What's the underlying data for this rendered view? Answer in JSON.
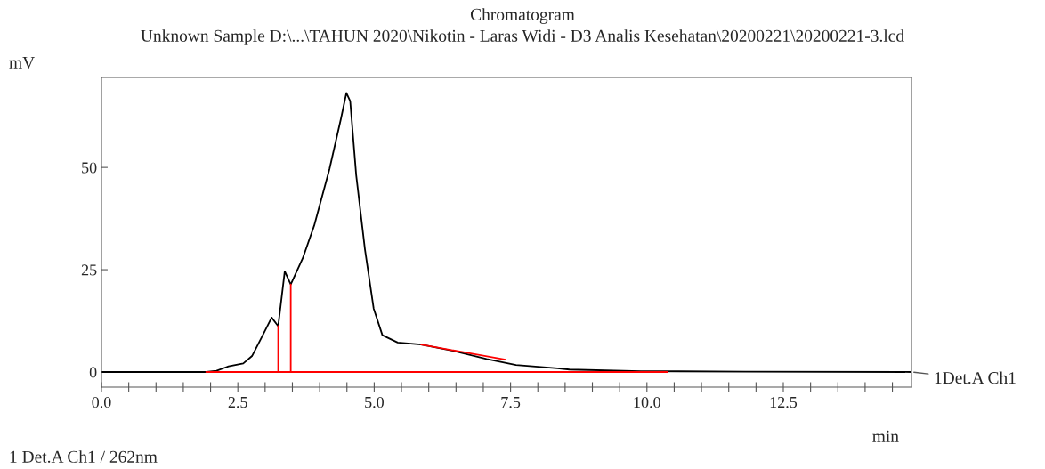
{
  "chart_data": {
    "type": "line",
    "title": "Chromatogram",
    "subtitle": "Unknown Sample D:\\...\\TAHUN 2020\\Nikotin - Laras Widi - D3 Analis Kesehatan\\20200221\\20200221-3.lcd",
    "xlabel": "min",
    "ylabel": "mV",
    "annotations": [
      {
        "text": "1Det.A Ch1",
        "x": 14.85,
        "y": 0
      },
      "1 Det.A Ch1 / 262nm"
    ],
    "series": [
      {
        "color": "#000000",
        "x": [
          0,
          1.92,
          2.11,
          2.33,
          2.6,
          2.76,
          2.93,
          3.12,
          3.24,
          3.36,
          3.47,
          3.69,
          3.9,
          4.18,
          4.39,
          4.49,
          4.56,
          4.67,
          4.83,
          4.99,
          5.15,
          5.43,
          5.86,
          6.51,
          7.06,
          7.6,
          8.36,
          8.58,
          9.89,
          11.8,
          14.85
        ],
        "values": [
          0,
          0,
          0.3,
          1.4,
          2.1,
          3.9,
          8.3,
          13.3,
          11.2,
          24.6,
          21.4,
          27.8,
          35.8,
          49.6,
          61.9,
          68.2,
          66.2,
          48.1,
          30,
          15.5,
          9.0,
          7.2,
          6.7,
          5.0,
          3.2,
          1.7,
          0.9,
          0.6,
          0.2,
          0.1,
          0
        ]
      },
      {
        "color": "#ff0000",
        "x": [
          1.92,
          10.38
        ],
        "values": [
          0,
          0
        ]
      },
      {
        "color": "#ff0000",
        "x": [
          3.24,
          3.24
        ],
        "values": [
          0,
          11.2
        ]
      },
      {
        "color": "#ff0000",
        "x": [
          3.47,
          3.47
        ],
        "values": [
          0,
          21.4
        ]
      },
      {
        "color": "#ff0000",
        "x": [
          5.86,
          7.41
        ],
        "values": [
          6.7,
          3.0
        ]
      }
    ],
    "xlim": [
      0,
      14.85
    ],
    "ylim": [
      -3.7,
      72
    ],
    "xticks": [
      {
        "value": 0,
        "label": "0.0"
      },
      {
        "value": 0.5,
        "label": null
      },
      {
        "value": 1,
        "label": null
      },
      {
        "value": 1.5,
        "label": null
      },
      {
        "value": 2,
        "label": null
      },
      {
        "value": 2.5,
        "label": "2.5"
      },
      {
        "value": 3,
        "label": null
      },
      {
        "value": 3.5,
        "label": null
      },
      {
        "value": 4,
        "label": null
      },
      {
        "value": 4.5,
        "label": null
      },
      {
        "value": 5,
        "label": "5.0"
      },
      {
        "value": 5.5,
        "label": null
      },
      {
        "value": 6,
        "label": null
      },
      {
        "value": 6.5,
        "label": null
      },
      {
        "value": 7,
        "label": null
      },
      {
        "value": 7.5,
        "label": "7.5"
      },
      {
        "value": 8,
        "label": null
      },
      {
        "value": 8.5,
        "label": null
      },
      {
        "value": 9,
        "label": null
      },
      {
        "value": 9.5,
        "label": null
      },
      {
        "value": 10,
        "label": "10.0"
      },
      {
        "value": 10.5,
        "label": null
      },
      {
        "value": 11,
        "label": null
      },
      {
        "value": 11.5,
        "label": null
      },
      {
        "value": 12,
        "label": null
      },
      {
        "value": 12.5,
        "label": "12.5"
      },
      {
        "value": 13,
        "label": null
      },
      {
        "value": 13.5,
        "label": null
      },
      {
        "value": 14,
        "label": null
      },
      {
        "value": 14.5,
        "label": null
      }
    ],
    "yticks": [
      0,
      25,
      50
    ],
    "grid": false
  }
}
